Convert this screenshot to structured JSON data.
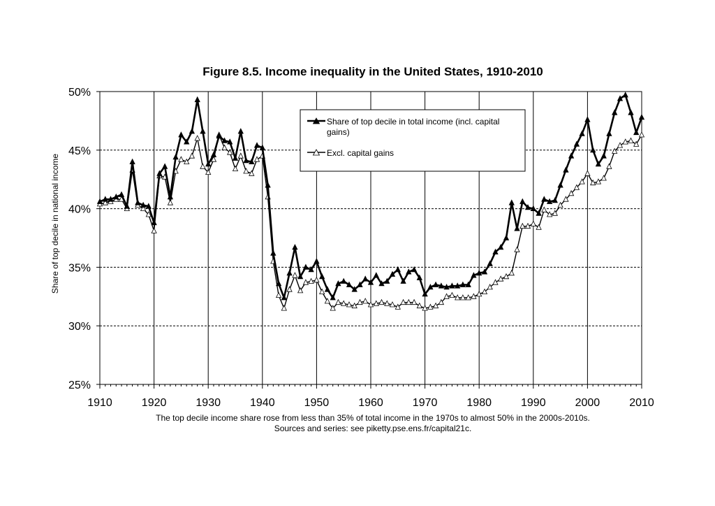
{
  "chart_data": {
    "type": "line",
    "title": "Figure 8.5. Income inequality in the United States, 1910-2010",
    "ylabel": "Share of top decile in national income",
    "xlabel": "",
    "xlim": [
      1910,
      2010
    ],
    "ylim": [
      25,
      50
    ],
    "x_ticks": [
      1910,
      1920,
      1930,
      1940,
      1950,
      1960,
      1970,
      1980,
      1990,
      2000,
      2010
    ],
    "x_tick_labels": [
      "1910",
      "1920",
      "1930",
      "1940",
      "1950",
      "1960",
      "1970",
      "1980",
      "1990",
      "2000",
      "2010"
    ],
    "y_ticks": [
      25,
      30,
      35,
      40,
      45,
      50
    ],
    "y_tick_labels": [
      "25%",
      "30%",
      "35%",
      "40%",
      "45%",
      "50%"
    ],
    "grid": "horizontal dashed",
    "legend_position": "top-center",
    "x": [
      1910,
      1911,
      1912,
      1913,
      1914,
      1915,
      1916,
      1917,
      1918,
      1919,
      1920,
      1921,
      1922,
      1923,
      1924,
      1925,
      1926,
      1927,
      1928,
      1929,
      1930,
      1931,
      1932,
      1933,
      1934,
      1935,
      1936,
      1937,
      1938,
      1939,
      1940,
      1941,
      1942,
      1943,
      1944,
      1945,
      1946,
      1947,
      1948,
      1949,
      1950,
      1951,
      1952,
      1953,
      1954,
      1955,
      1956,
      1957,
      1958,
      1959,
      1960,
      1961,
      1962,
      1963,
      1964,
      1965,
      1966,
      1967,
      1968,
      1969,
      1970,
      1971,
      1972,
      1973,
      1974,
      1975,
      1976,
      1977,
      1978,
      1979,
      1980,
      1981,
      1982,
      1983,
      1984,
      1985,
      1986,
      1987,
      1988,
      1989,
      1990,
      1991,
      1992,
      1993,
      1994,
      1995,
      1996,
      1997,
      1998,
      1999,
      2000,
      2001,
      2002,
      2003,
      2004,
      2005,
      2006,
      2007,
      2008,
      2009,
      2010
    ],
    "series": [
      {
        "name": "Share of top decile in total income (incl. capital gains)",
        "marker": "filled-triangle",
        "color": "#000000",
        "values": [
          40.6,
          40.8,
          40.8,
          41.0,
          41.2,
          40.2,
          44.0,
          40.5,
          40.3,
          40.2,
          38.8,
          43.0,
          43.6,
          41.0,
          44.4,
          46.3,
          45.7,
          46.6,
          49.3,
          46.6,
          43.8,
          44.6,
          46.2,
          45.8,
          45.7,
          44.3,
          46.6,
          44.1,
          44.0,
          45.4,
          45.2,
          42.0,
          36.2,
          33.6,
          32.4,
          34.5,
          36.7,
          34.2,
          35.0,
          34.8,
          35.5,
          34.2,
          33.1,
          32.4,
          33.6,
          33.8,
          33.5,
          33.1,
          33.5,
          34.0,
          33.7,
          34.3,
          33.6,
          33.8,
          34.4,
          34.8,
          33.8,
          34.6,
          34.8,
          34.1,
          32.7,
          33.3,
          33.5,
          33.4,
          33.3,
          33.4,
          33.4,
          33.5,
          33.5,
          34.3,
          34.5,
          34.6,
          35.3,
          36.3,
          36.7,
          37.5,
          40.5,
          38.3,
          40.6,
          40.1,
          40.0,
          39.6,
          40.8,
          40.6,
          40.7,
          42.0,
          43.3,
          44.5,
          45.5,
          46.4,
          47.6,
          45.0,
          43.8,
          44.5,
          46.4,
          48.2,
          49.4,
          49.7,
          48.2,
          46.5,
          47.8
        ]
      },
      {
        "name": "Excl. capital gains",
        "marker": "hollow-triangle",
        "color": "#000000",
        "values": [
          40.4,
          40.5,
          40.6,
          40.8,
          40.8,
          40.0,
          43.3,
          40.3,
          40.0,
          39.5,
          38.1,
          42.8,
          42.7,
          40.5,
          43.2,
          44.2,
          44.0,
          44.5,
          46.0,
          43.6,
          43.1,
          44.2,
          46.3,
          45.2,
          44.8,
          43.4,
          44.5,
          43.2,
          43.0,
          44.2,
          44.5,
          41.0,
          35.5,
          32.6,
          31.5,
          33.1,
          34.3,
          33.0,
          33.7,
          33.8,
          33.9,
          32.9,
          32.1,
          31.5,
          32.0,
          31.9,
          31.8,
          31.7,
          32.0,
          32.1,
          31.8,
          31.9,
          32.0,
          31.9,
          31.8,
          31.6,
          32.0,
          32.0,
          32.0,
          31.7,
          31.5,
          31.6,
          31.7,
          32.0,
          32.5,
          32.6,
          32.4,
          32.4,
          32.4,
          32.5,
          32.7,
          32.9,
          33.3,
          33.7,
          34.0,
          34.2,
          34.5,
          36.5,
          38.5,
          38.5,
          38.7,
          38.4,
          39.9,
          39.5,
          39.6,
          40.3,
          40.8,
          41.3,
          41.8,
          42.3,
          43.0,
          42.2,
          42.3,
          42.6,
          43.6,
          44.9,
          45.4,
          45.7,
          45.8,
          45.5,
          46.3
        ]
      }
    ]
  },
  "caption": {
    "line1": "The top decile income share rose from less than 35% of total income in the 1970s to almost 50% in the 2000s-2010s.",
    "line2": "Sources and series: see piketty.pse.ens.fr/capital21c."
  },
  "legend": {
    "entry1_line1": "Share of top decile in total income (incl. capital",
    "entry1_line2": "gains)",
    "entry2": "Excl. capital gains"
  }
}
